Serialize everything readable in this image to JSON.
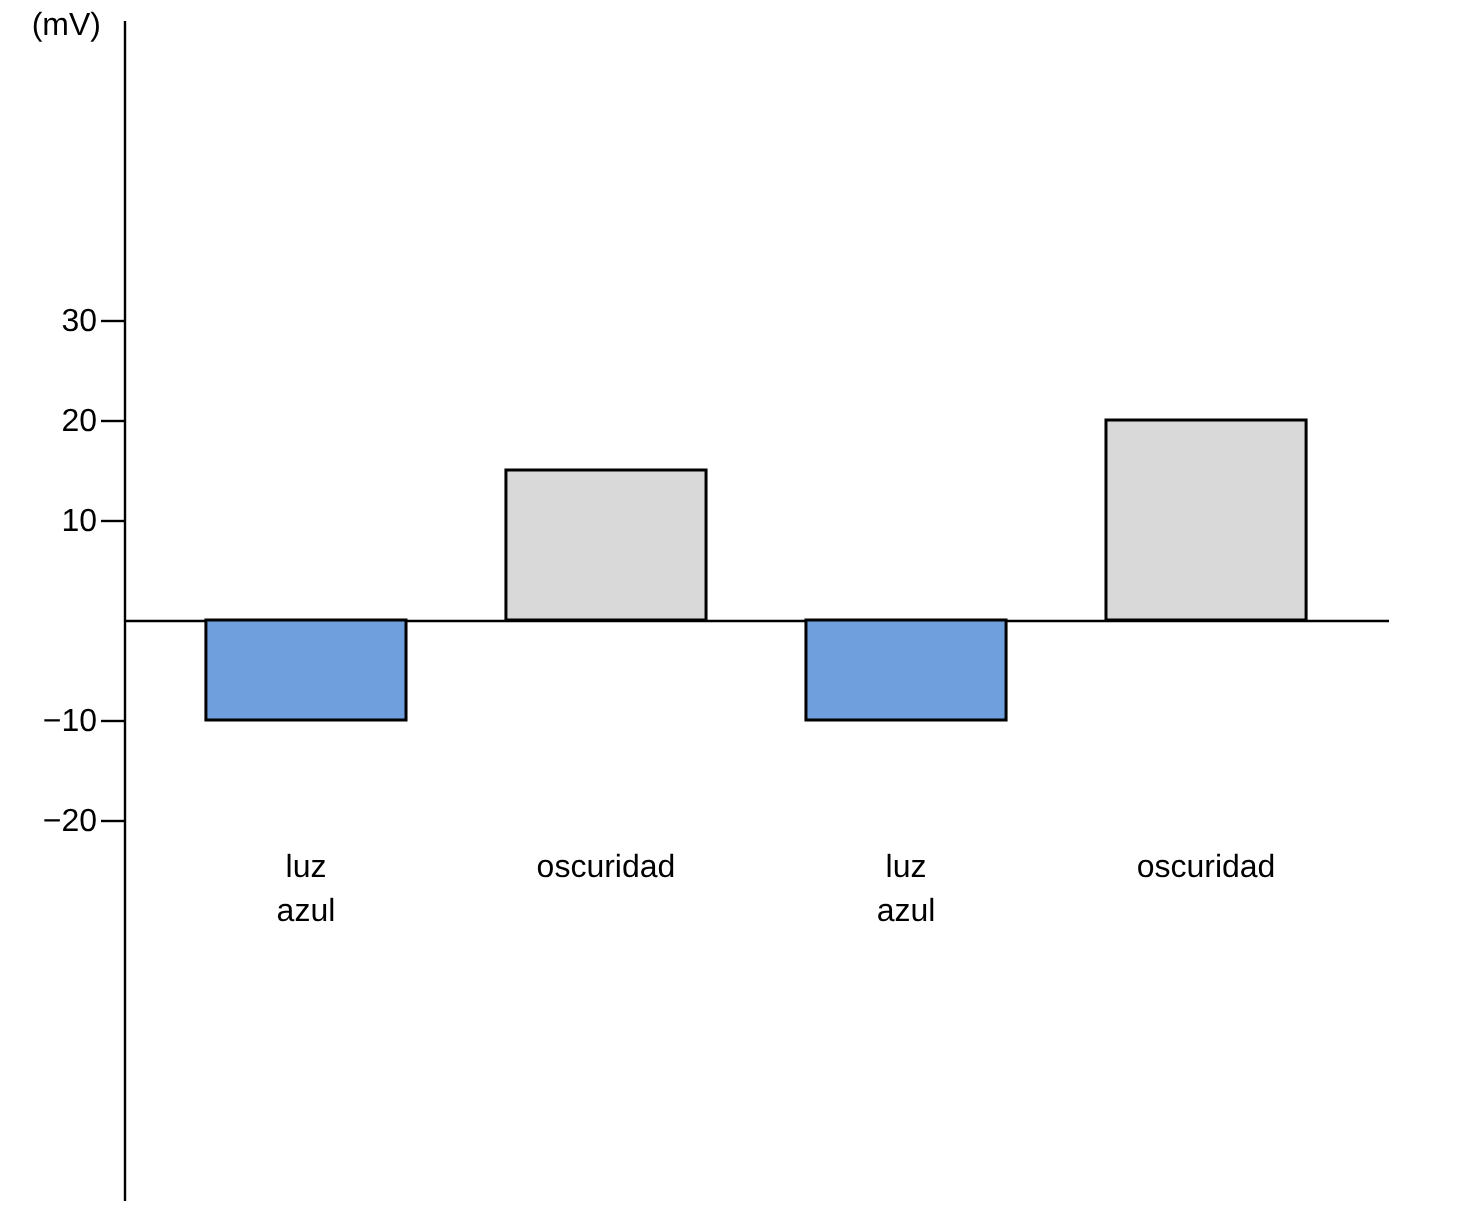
{
  "chart_data": {
    "type": "bar",
    "ylabel": "(mV)",
    "categories": [
      "luz azul",
      "oscuridad",
      "luz azul",
      "oscuridad"
    ],
    "values": [
      -10,
      15,
      -10,
      20
    ],
    "colors": [
      "#6f9fdc",
      "#d9d9d9",
      "#6f9fdc",
      "#d9d9d9"
    ],
    "ylim": [
      -58,
      60
    ],
    "yticks": [
      -20,
      -10,
      10,
      20,
      30
    ]
  }
}
